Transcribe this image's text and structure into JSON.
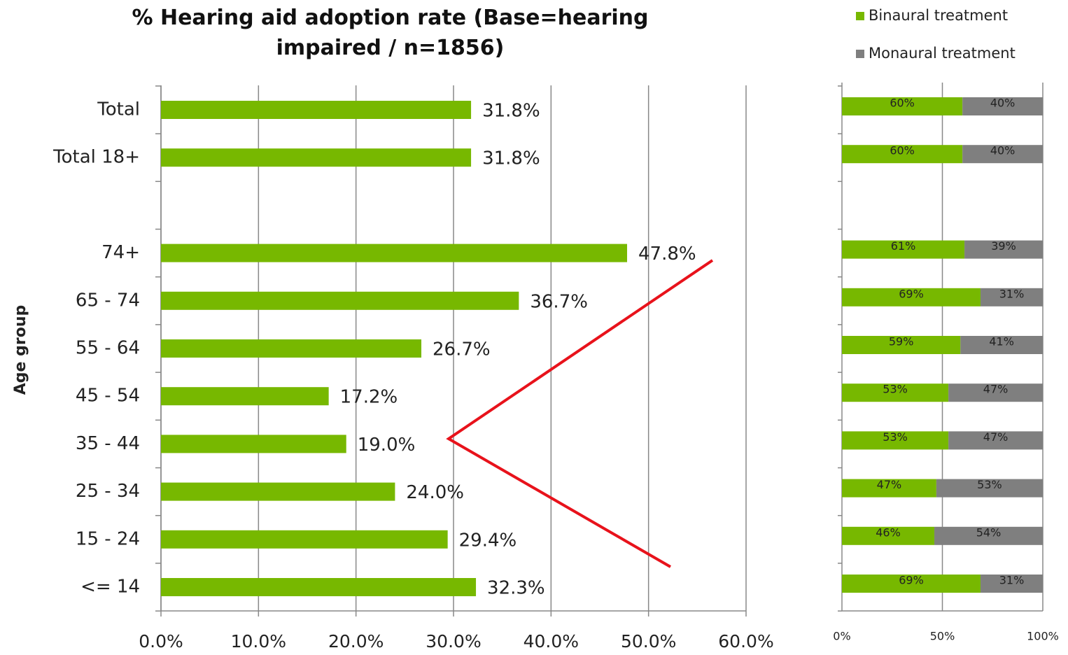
{
  "chart_data": [
    {
      "type": "hbar",
      "title": "% Hearing aid adoption rate (Base=hearing impaired / n=1856)",
      "ylabel": "Age group",
      "categories": [
        "Total",
        "Total 18+",
        null,
        "74+",
        "65 - 74",
        "55 - 64",
        "45 - 54",
        "35 - 44",
        "25 - 34",
        "15 - 24",
        "<= 14"
      ],
      "values": [
        31.8,
        31.8,
        null,
        47.8,
        36.7,
        26.7,
        17.2,
        19.0,
        24.0,
        29.4,
        32.3
      ],
      "value_labels": [
        "31.8%",
        "31.8%",
        null,
        "47.8%",
        "36.7%",
        "26.7%",
        "17.2%",
        "19.0%",
        "24.0%",
        "29.4%",
        "32.3%"
      ],
      "color": "#77b800",
      "xlim": [
        0,
        60
      ],
      "xticks": [
        {
          "value": 0,
          "label": "0.0%"
        },
        {
          "value": 10,
          "label": "10.0%"
        },
        {
          "value": 20,
          "label": "20.0%"
        },
        {
          "value": 30,
          "label": "30.0%"
        },
        {
          "value": 40,
          "label": "40.0%"
        },
        {
          "value": 50,
          "label": "50.0%"
        },
        {
          "value": 60,
          "label": "60.0%"
        }
      ],
      "grid": true
    },
    {
      "type": "stacked_hbar",
      "series": [
        {
          "name": "Binaural treatment",
          "color": "#77b800",
          "values": [
            60,
            60,
            null,
            61,
            69,
            59,
            53,
            53,
            47,
            46,
            69
          ],
          "value_labels": [
            "60%",
            "60%",
            null,
            "61%",
            "69%",
            "59%",
            "53%",
            "53%",
            "47%",
            "46%",
            "69%"
          ]
        },
        {
          "name": "Monaural treatment",
          "color": "#7f7f7f",
          "values": [
            40,
            40,
            null,
            39,
            31,
            41,
            47,
            47,
            53,
            54,
            31
          ],
          "value_labels": [
            "40%",
            "40%",
            null,
            "39%",
            "31%",
            "41%",
            "47%",
            "47%",
            "53%",
            "54%",
            "31%"
          ]
        }
      ],
      "xlim": [
        0,
        100
      ],
      "xticks": [
        {
          "value": 0,
          "label": "0%"
        },
        {
          "value": 50,
          "label": "50%"
        },
        {
          "value": 100,
          "label": "100%"
        }
      ],
      "grid": true
    }
  ]
}
